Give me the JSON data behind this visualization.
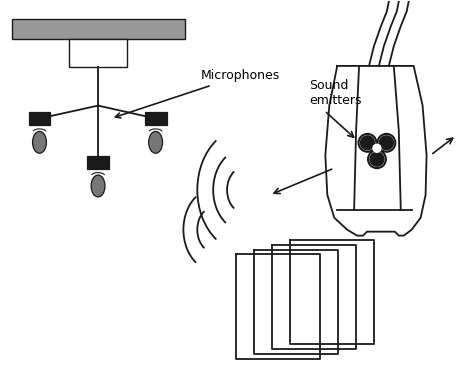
{
  "text_microphones": "Microphones",
  "text_sound_emitters": "Sound\nemitters",
  "ceiling_color": "#999999",
  "line_color": "#1a1a1a",
  "fig_width": 4.74,
  "fig_height": 3.71,
  "bg_color": "white"
}
